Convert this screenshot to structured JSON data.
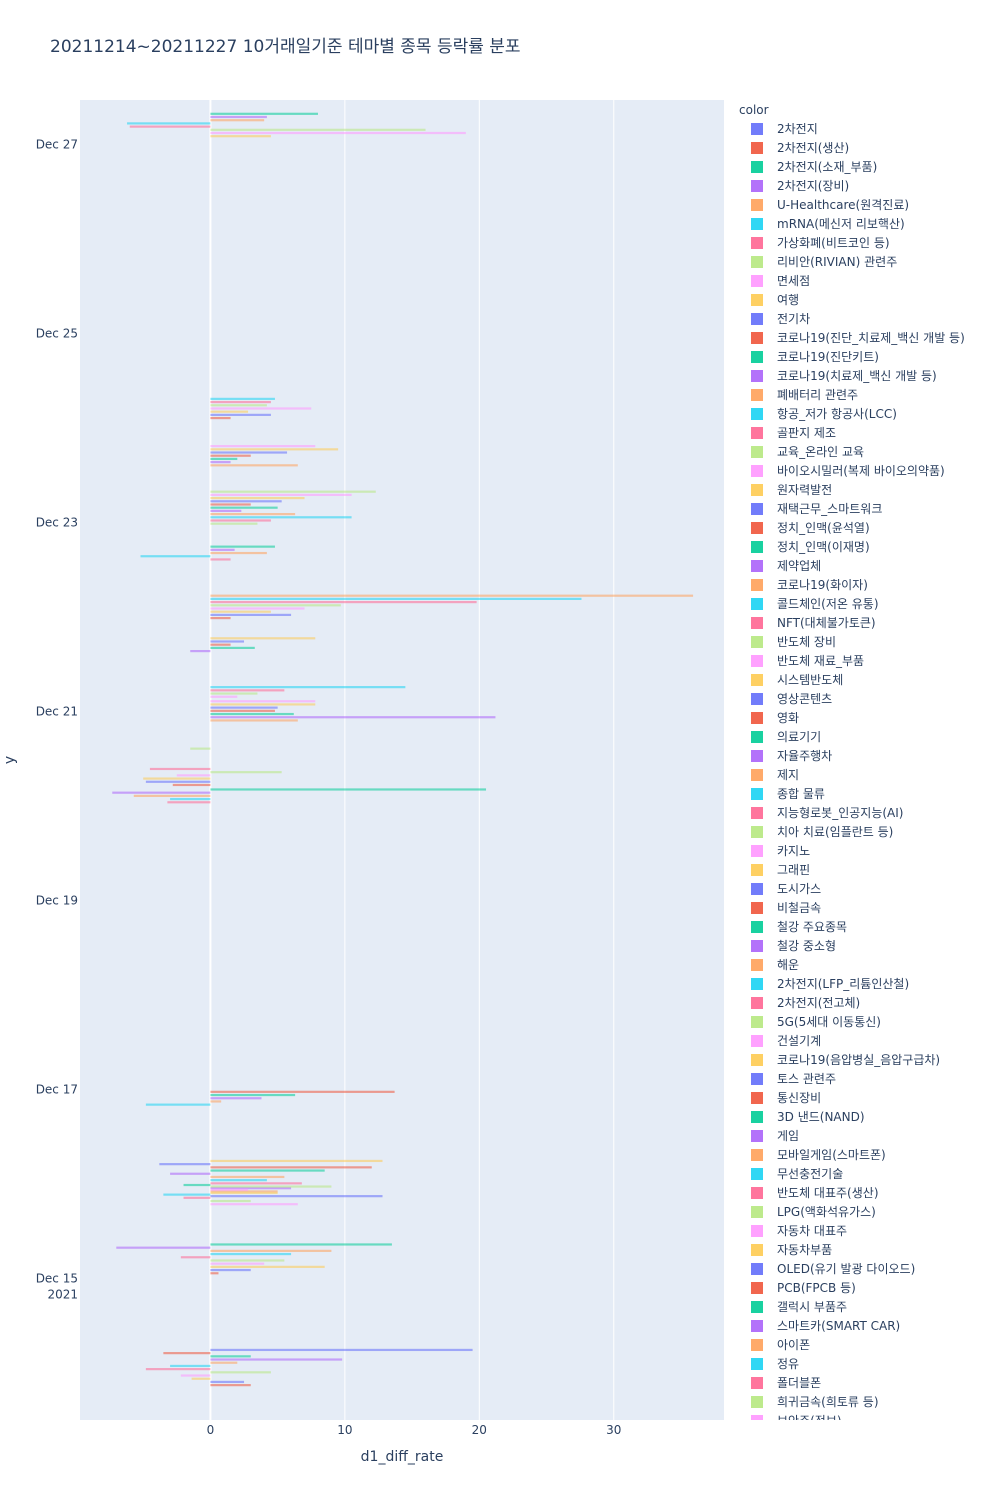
{
  "chart_data": {
    "type": "bar",
    "orientation": "horizontal",
    "title": "20211214~20211227 10거래일기준 테마별 종목 등락률 분포",
    "xlabel": "d1_diff_rate",
    "ylabel": "y",
    "xlim": [
      -9.7,
      38.2
    ],
    "x_ticks": [
      0,
      10,
      20,
      30
    ],
    "x_tick_labels": [
      "0",
      "10",
      "20",
      "30"
    ],
    "y_ticks": [
      {
        "label": "Dec 15",
        "sub": "2021",
        "day": 15
      },
      {
        "label": "Dec 17",
        "sub": "",
        "day": 17
      },
      {
        "label": "Dec 19",
        "sub": "",
        "day": 19
      },
      {
        "label": "Dec 21",
        "sub": "",
        "day": 21
      },
      {
        "label": "Dec 23",
        "sub": "",
        "day": 23
      },
      {
        "label": "Dec 25",
        "sub": "",
        "day": 25
      },
      {
        "label": "Dec 27",
        "sub": "",
        "day": 27
      }
    ],
    "y_range_days": [
      13.5,
      27.47
    ],
    "legend_title": "color",
    "palette": [
      "#636efa",
      "#EF553B",
      "#00cc96",
      "#ab63fa",
      "#FFA15A",
      "#19d3f3",
      "#FF6692",
      "#B6E880",
      "#FF97FF",
      "#FECB52"
    ],
    "legend": [
      "2차전지",
      "2차전지(생산)",
      "2차전지(소재_부품)",
      "2차전지(장비)",
      "U-Healthcare(원격진료)",
      "mRNA(메신저 리보핵산)",
      "가상화폐(비트코인 등)",
      "리비안(RIVIAN) 관련주",
      "면세점",
      "여행",
      "전기차",
      "코로나19(진단_치료제_백신 개발 등)",
      "코로나19(진단키트)",
      "코로나19(치료제_백신 개발 등)",
      "폐배터리 관련주",
      "항공_저가 항공사(LCC)",
      "골판지 제조",
      "교육_온라인 교육",
      "바이오시밀러(복제 바이오의약품)",
      "원자력발전",
      "재택근무_스마트워크",
      "정치_인맥(윤석열)",
      "정치_인맥(이재명)",
      "제약업체",
      "코로나19(화이자)",
      "콜드체인(저온 유통)",
      "NFT(대체불가토큰)",
      "반도체 장비",
      "반도체 재료_부품",
      "시스템반도체",
      "영상콘텐츠",
      "영화",
      "의료기기",
      "자율주행차",
      "제지",
      "종합 물류",
      "지능형로봇_인공지능(AI)",
      "치아 치료(임플란트 등)",
      "카지노",
      "그래핀",
      "도시가스",
      "비철금속",
      "철강 주요종목",
      "철강 중소형",
      "해운",
      "2차전지(LFP_리튬인산철)",
      "2차전지(전고체)",
      "5G(5세대 이동통신)",
      "건설기계",
      "코로나19(음압병실_음압구급차)",
      "토스 관련주",
      "통신장비",
      "3D 낸드(NAND)",
      "게임",
      "모바일게임(스마트폰)",
      "무선충전기술",
      "반도체 대표주(생산)",
      "LPG(액화석유가스)",
      "자동차 대표주",
      "자동차부품",
      "OLED(유기 발광 다이오드)",
      "PCB(FPCB 등)",
      "갤럭시 부품주",
      "스마트카(SMART CAR)",
      "아이폰",
      "정유",
      "폴더블폰",
      "희귀금속(희토류 등)",
      "보안주(정보)"
    ],
    "groups": [
      {
        "day": 14.05,
        "values": [
          19.5,
          -3.5,
          3.0,
          9.8,
          2.0,
          -3.0,
          -4.8,
          4.5,
          -2.2,
          -1.4,
          2.5,
          3.0
        ]
      },
      {
        "day": 15.2,
        "values": [
          13.5,
          -7.0,
          9.0,
          6.0,
          -2.2,
          5.5,
          4.0,
          8.5,
          3.0,
          0.6
        ]
      },
      {
        "day": 15.88,
        "values": [
          -2.0,
          6.0,
          5.0,
          -3.5,
          -2.0,
          3.0,
          6.5
        ]
      },
      {
        "day": 16.05,
        "values": [
          12.8,
          -3.8,
          12.0,
          8.5,
          -3.0,
          5.5,
          4.2,
          6.8,
          9.0,
          2.8,
          5.0,
          12.8
        ]
      },
      {
        "day": 16.9,
        "values": [
          13.7,
          6.3,
          3.8,
          0.8,
          -4.8
        ]
      },
      {
        "day": 20.3,
        "values": [
          -4.5,
          5.3,
          -2.5,
          -5.0,
          -4.8,
          -2.8
        ]
      },
      {
        "day": 20.1,
        "values": [
          20.5,
          -7.3,
          -5.7,
          -3.0,
          -3.2
        ]
      },
      {
        "day": 20.6,
        "values": [
          -1.5
        ]
      },
      {
        "day": 21.0,
        "values": [
          7.8,
          7.8,
          5.0,
          4.8,
          6.2,
          21.2,
          6.5
        ]
      },
      {
        "day": 21.2,
        "values": [
          14.5,
          5.5,
          3.5,
          2.0
        ]
      },
      {
        "day": 21.7,
        "values": [
          7.8,
          2.5,
          1.5,
          3.3,
          -1.5
        ]
      },
      {
        "day": 22.1,
        "values": [
          35.9,
          27.6,
          19.8,
          9.7,
          7.0,
          4.5,
          6.0,
          1.5
        ]
      },
      {
        "day": 22.67,
        "values": [
          4.8,
          1.8,
          4.2,
          -5.2,
          1.5
        ]
      },
      {
        "day": 23.15,
        "values": [
          12.3,
          10.5,
          7.0,
          5.3,
          3.0,
          5.0,
          2.3,
          6.3,
          10.5,
          4.5,
          3.5
        ]
      },
      {
        "day": 23.7,
        "values": [
          7.8,
          9.5,
          5.7,
          3.0,
          2.0,
          1.5,
          6.5
        ]
      },
      {
        "day": 24.2,
        "values": [
          4.8,
          4.5,
          4.2,
          7.5,
          2.8,
          4.5,
          1.5
        ]
      },
      {
        "day": 27.2,
        "values": [
          8.0,
          4.2,
          4.0,
          -6.2,
          -6.0,
          16.0,
          19.0,
          4.5
        ]
      }
    ]
  }
}
